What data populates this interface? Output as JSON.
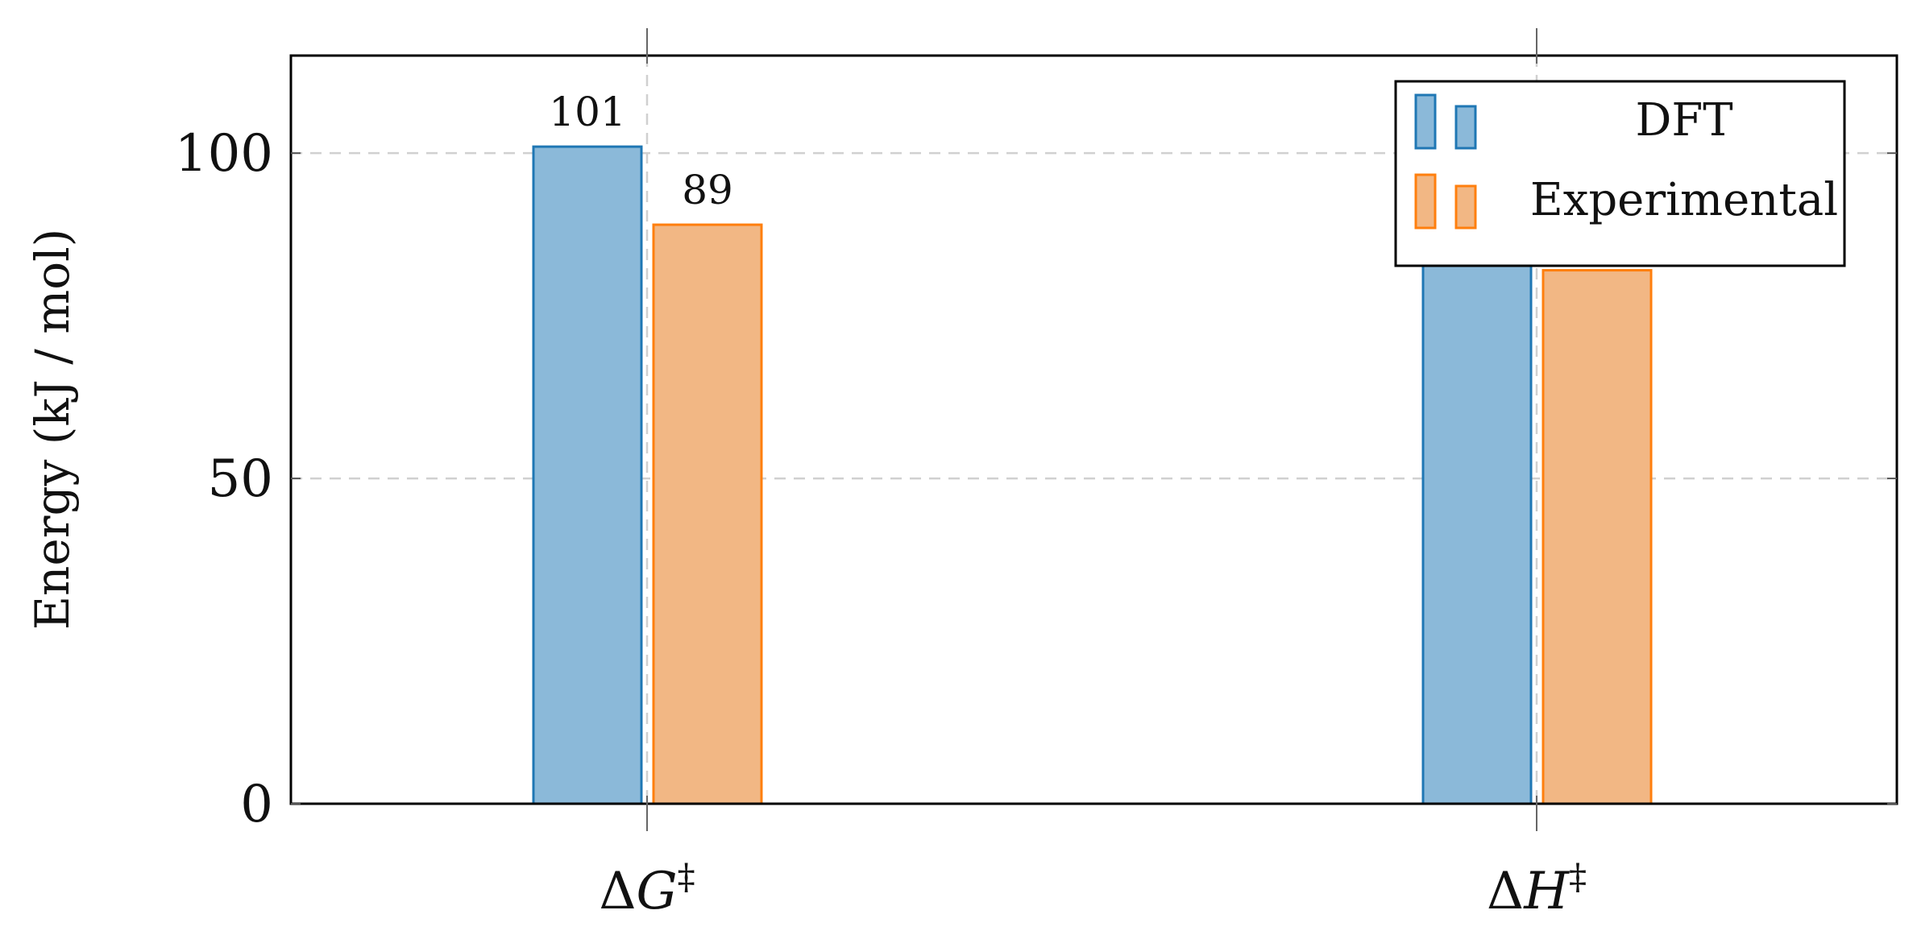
{
  "chart_data": {
    "type": "bar",
    "categories": [
      "ΔG‡",
      "ΔH‡"
    ],
    "category_parts": [
      {
        "symbol": "G",
        "prefix": "Δ",
        "suffix": "‡"
      },
      {
        "symbol": "H",
        "prefix": "Δ",
        "suffix": "‡"
      }
    ],
    "series": [
      {
        "name": "DFT",
        "values": [
          101,
          93
        ],
        "data_labels": [
          "101",
          null
        ]
      },
      {
        "name": "Experimental",
        "values": [
          89,
          82
        ],
        "data_labels": [
          "89",
          null
        ]
      }
    ],
    "ylabel": "Energy (kJ / mol)",
    "xlabel": "",
    "ylim": [
      0,
      115
    ],
    "yticks": [
      0,
      50,
      100
    ],
    "ytick_labels": [
      "0",
      "50",
      "100"
    ],
    "grid": true,
    "legend_position": "top-right",
    "colors": {
      "DFT": {
        "fill": "#8bb9d9",
        "stroke": "#1f77b4"
      },
      "Experimental": {
        "fill": "#f2b784",
        "stroke": "#ff7f0e"
      }
    }
  }
}
